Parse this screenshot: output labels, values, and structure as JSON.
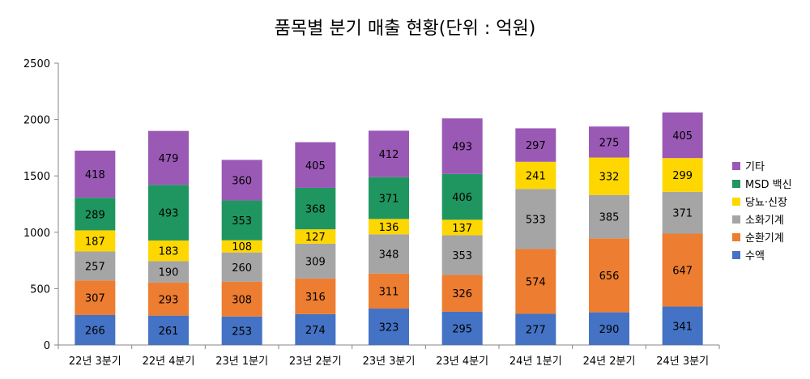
{
  "chart_data": {
    "type": "bar",
    "stacked": true,
    "title": "품목별 분기 매출 현황(단위 : 억원)",
    "xlabel": "",
    "ylabel": "",
    "ylim": [
      0,
      2500
    ],
    "yticks": [
      0,
      500,
      1000,
      1500,
      2000,
      2500
    ],
    "grid": false,
    "legend_position": "right",
    "categories": [
      "22년 3분기",
      "22년 4분기",
      "23년 1분기",
      "23년 2분기",
      "23년 3분기",
      "23년 4분기",
      "24년 1분기",
      "24년 2분기",
      "24년 3분기"
    ],
    "series": [
      {
        "name": "수액",
        "color": "#4472C4",
        "values": [
          266,
          261,
          253,
          274,
          323,
          295,
          277,
          290,
          341
        ]
      },
      {
        "name": "순환기계",
        "color": "#ED7D31",
        "values": [
          307,
          293,
          308,
          316,
          311,
          326,
          574,
          656,
          647
        ]
      },
      {
        "name": "소화기계",
        "color": "#A5A5A5",
        "values": [
          257,
          190,
          260,
          309,
          348,
          353,
          533,
          385,
          371
        ]
      },
      {
        "name": "당뇨·신장",
        "color": "#FFD700",
        "values": [
          187,
          183,
          108,
          127,
          136,
          137,
          241,
          332,
          299
        ]
      },
      {
        "name": "MSD 백신",
        "color": "#1F9660",
        "values": [
          289,
          493,
          353,
          368,
          371,
          406,
          0,
          0,
          0
        ]
      },
      {
        "name": "기타",
        "color": "#9B59B6",
        "values": [
          418,
          479,
          360,
          405,
          412,
          493,
          297,
          275,
          405
        ]
      }
    ]
  }
}
